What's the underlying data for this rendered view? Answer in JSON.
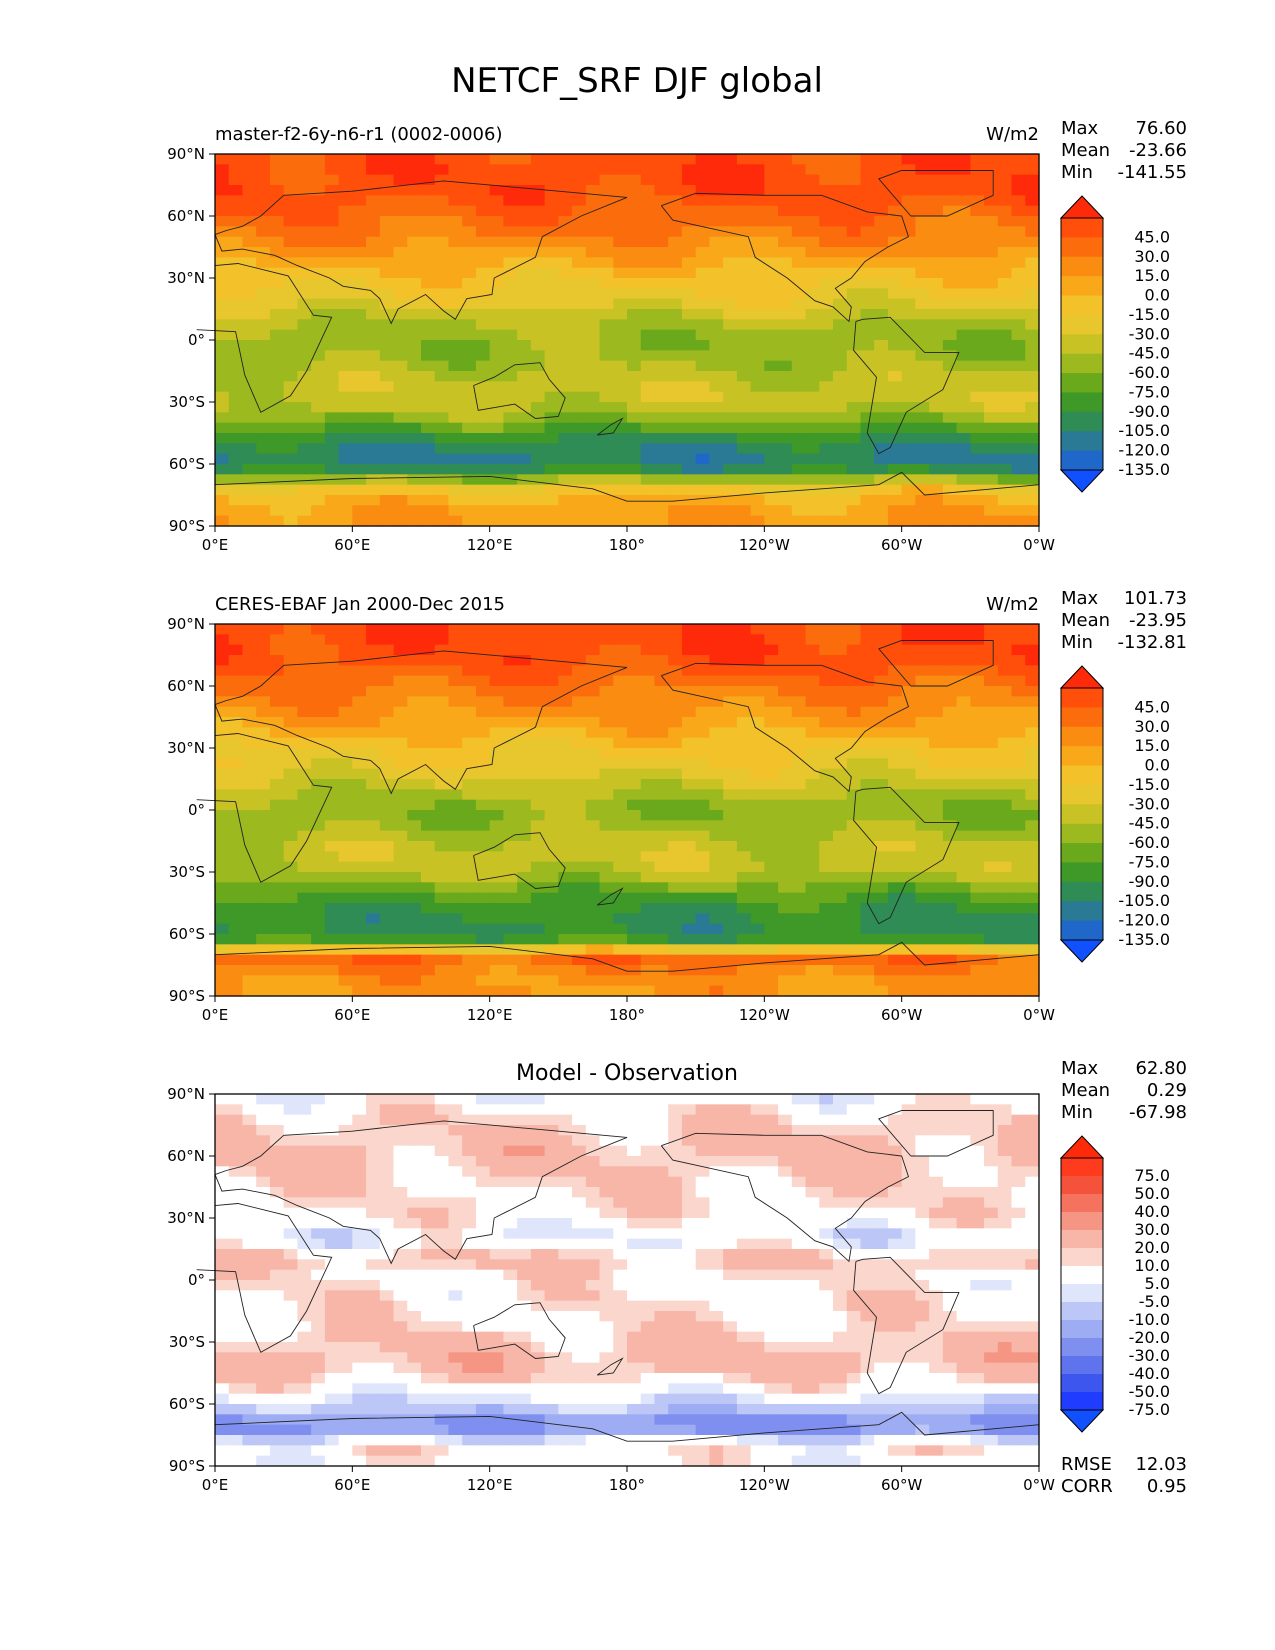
{
  "title": "NETCF_SRF DJF global",
  "chart_data": [
    {
      "type": "heatmap",
      "panel": "model",
      "title": "master-f2-6y-n6-r1 (0002-0006)",
      "units": "W/m2",
      "stats": {
        "max_label": "Max",
        "max": "76.60",
        "mean_label": "Mean",
        "mean": "-23.66",
        "min_label": "Min",
        "min": "-141.55"
      },
      "x_ticks": [
        "0°E",
        "60°E",
        "120°E",
        "180°",
        "120°W",
        "60°W",
        "0°W"
      ],
      "y_ticks": [
        "90°N",
        "60°N",
        "30°N",
        "0°",
        "30°S",
        "60°S",
        "90°S"
      ],
      "xlim": [
        0,
        360
      ],
      "ylim": [
        -90,
        90
      ],
      "colorbar": {
        "labels": [
          "45.0",
          "30.0",
          "15.0",
          "0.0",
          "-15.0",
          "-30.0",
          "-45.0",
          "-60.0",
          "-75.0",
          "-90.0",
          "-105.0",
          "-120.0",
          "-135.0"
        ],
        "colors": [
          "#ff2a0a",
          "#ff4f0a",
          "#fb6c0c",
          "#fa8c12",
          "#f8a819",
          "#f3c12a",
          "#e8c62e",
          "#c9c225",
          "#9cba1f",
          "#6aa91c",
          "#3e9929",
          "#2f8c55",
          "#2a7a95",
          "#1f67c8",
          "#1050ff"
        ]
      },
      "zonal_profile": {
        "lat": [
          90,
          80,
          70,
          60,
          50,
          40,
          30,
          20,
          10,
          0,
          -10,
          -20,
          -30,
          -40,
          -50,
          -60,
          -65,
          -70,
          -80,
          -90
        ],
        "value": [
          52,
          55,
          52,
          40,
          28,
          10,
          -8,
          -20,
          -42,
          -55,
          -52,
          -38,
          -35,
          -62,
          -100,
          -108,
          -80,
          -20,
          10,
          15
        ]
      }
    },
    {
      "type": "heatmap",
      "panel": "observation",
      "title": "CERES-EBAF Jan 2000-Dec 2015",
      "units": "W/m2",
      "stats": {
        "max_label": "Max",
        "max": "101.73",
        "mean_label": "Mean",
        "mean": "-23.95",
        "min_label": "Min",
        "min": "-132.81"
      },
      "x_ticks": [
        "0°E",
        "60°E",
        "120°E",
        "180°",
        "120°W",
        "60°W",
        "0°W"
      ],
      "y_ticks": [
        "90°N",
        "60°N",
        "30°N",
        "0°",
        "30°S",
        "60°S",
        "90°S"
      ],
      "xlim": [
        0,
        360
      ],
      "ylim": [
        -90,
        90
      ],
      "colorbar": {
        "labels": [
          "45.0",
          "30.0",
          "15.0",
          "0.0",
          "-15.0",
          "-30.0",
          "-45.0",
          "-60.0",
          "-75.0",
          "-90.0",
          "-105.0",
          "-120.0",
          "-135.0"
        ],
        "colors": [
          "#ff2a0a",
          "#ff4f0a",
          "#fb6c0c",
          "#fa8c12",
          "#f8a819",
          "#f3c12a",
          "#e8c62e",
          "#c9c225",
          "#9cba1f",
          "#6aa91c",
          "#3e9929",
          "#2f8c55",
          "#2a7a95",
          "#1f67c8",
          "#1050ff"
        ]
      },
      "zonal_profile": {
        "lat": [
          90,
          80,
          70,
          60,
          50,
          40,
          30,
          20,
          10,
          0,
          -10,
          -20,
          -30,
          -40,
          -50,
          -60,
          -65,
          -70,
          -80,
          -90
        ],
        "value": [
          55,
          56,
          50,
          35,
          22,
          8,
          -12,
          -22,
          -40,
          -58,
          -50,
          -36,
          -40,
          -72,
          -92,
          -95,
          -70,
          45,
          20,
          15
        ]
      }
    },
    {
      "type": "heatmap",
      "panel": "difference",
      "title": "Model - Observation",
      "units": "",
      "stats": {
        "max_label": "Max",
        "max": "62.80",
        "mean_label": "Mean",
        "mean": "0.29",
        "min_label": "Min",
        "min": "-67.98"
      },
      "metrics": {
        "rmse_label": "RMSE",
        "rmse": "12.03",
        "corr_label": "CORR",
        "corr": "0.95"
      },
      "x_ticks": [
        "0°E",
        "60°E",
        "120°E",
        "180°",
        "120°W",
        "60°W",
        "0°W"
      ],
      "y_ticks": [
        "90°N",
        "60°N",
        "30°N",
        "0°",
        "30°S",
        "60°S",
        "90°S"
      ],
      "xlim": [
        0,
        360
      ],
      "ylim": [
        -90,
        90
      ],
      "colorbar": {
        "labels": [
          "75.0",
          "50.0",
          "40.0",
          "30.0",
          "20.0",
          "10.0",
          "5.0",
          "-5.0",
          "-10.0",
          "-20.0",
          "-30.0",
          "-40.0",
          "-50.0",
          "-75.0"
        ],
        "colors": [
          "#ff2a0a",
          "#ff3b1e",
          "#f5523c",
          "#f4725e",
          "#f59684",
          "#f7b6a8",
          "#fad6cc",
          "#ffffff",
          "#dfe5fb",
          "#bcc7f7",
          "#9dacf3",
          "#7e8ff0",
          "#5f73ec",
          "#3d57ee",
          "#1f3cff",
          "#1050ff"
        ]
      },
      "zonal_profile": {
        "lat": [
          90,
          80,
          70,
          60,
          50,
          40,
          30,
          20,
          10,
          0,
          -10,
          -20,
          -30,
          -40,
          -50,
          -60,
          -65,
          -70,
          -80,
          -90
        ],
        "value": [
          -3,
          6,
          10,
          12,
          8,
          6,
          4,
          -6,
          12,
          3,
          5,
          5,
          10,
          14,
          5,
          -10,
          -20,
          -40,
          4,
          0
        ]
      }
    }
  ]
}
